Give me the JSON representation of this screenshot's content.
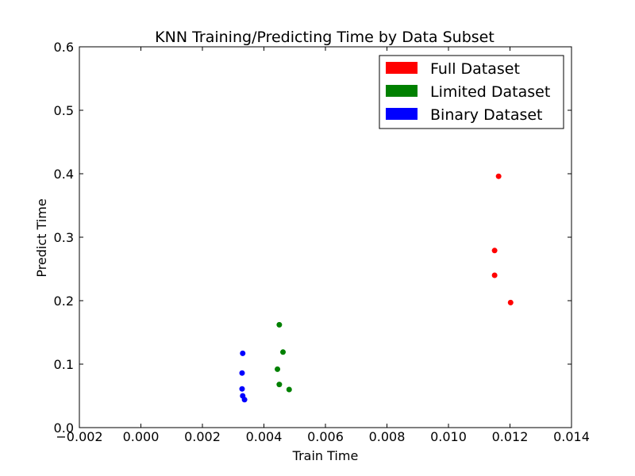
{
  "chart_data": {
    "type": "scatter",
    "title": "KNN Training/Predicting Time by Data Subset",
    "xlabel": "Train Time",
    "ylabel": "Predict Time",
    "xlim": [
      -0.002,
      0.014
    ],
    "ylim": [
      0.0,
      0.6
    ],
    "xticks": [
      -0.002,
      0.0,
      0.002,
      0.004,
      0.006,
      0.008,
      0.01,
      0.012,
      0.014
    ],
    "xtick_labels": [
      "−0.002",
      "0.000",
      "0.002",
      "0.004",
      "0.006",
      "0.008",
      "0.010",
      "0.012",
      "0.014"
    ],
    "yticks": [
      0.0,
      0.1,
      0.2,
      0.3,
      0.4,
      0.5,
      0.6
    ],
    "ytick_labels": [
      "0.0",
      "0.1",
      "0.2",
      "0.3",
      "0.4",
      "0.5",
      "0.6"
    ],
    "grid": false,
    "legend_position": "top-right",
    "series": [
      {
        "name": "Full Dataset",
        "color": "#ff0000",
        "points": [
          [
            0.01163,
            0.396
          ],
          [
            0.0115,
            0.279
          ],
          [
            0.0115,
            0.24
          ],
          [
            0.01202,
            0.197
          ]
        ]
      },
      {
        "name": "Limited Dataset",
        "color": "#008000",
        "points": [
          [
            0.0045,
            0.162
          ],
          [
            0.00462,
            0.119
          ],
          [
            0.00444,
            0.092
          ],
          [
            0.0045,
            0.068
          ],
          [
            0.00482,
            0.06
          ]
        ]
      },
      {
        "name": "Binary Dataset",
        "color": "#0000ff",
        "points": [
          [
            0.00331,
            0.117
          ],
          [
            0.00329,
            0.086
          ],
          [
            0.00329,
            0.061
          ],
          [
            0.00331,
            0.05
          ],
          [
            0.00337,
            0.044
          ]
        ]
      }
    ]
  }
}
